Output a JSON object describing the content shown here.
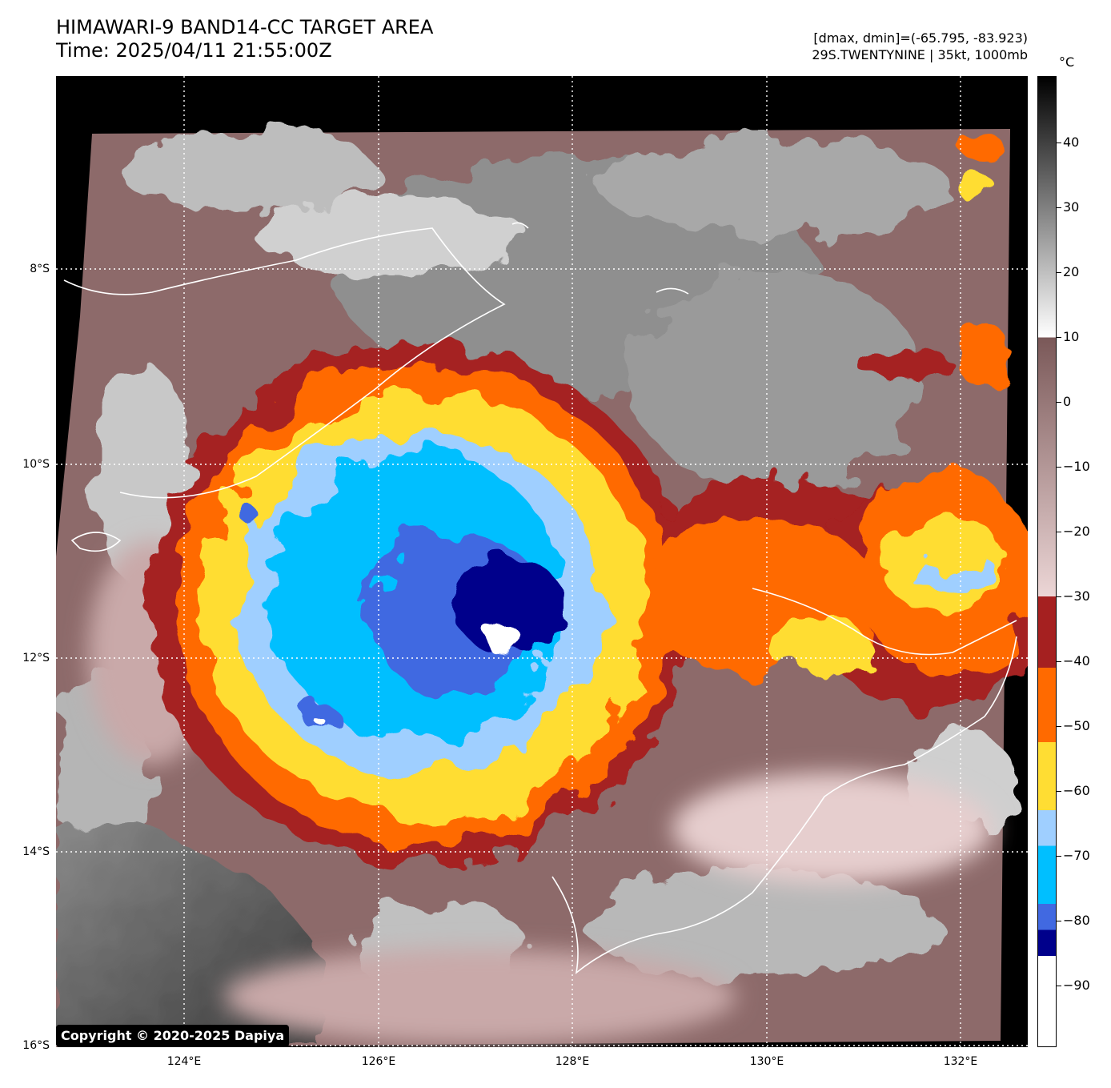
{
  "header": {
    "title_line1": "HIMAWARI-9 BAND14-CC TARGET AREA",
    "title_line2": "Time: 2025/04/11 21:55:00Z",
    "meta_line1": "[dmax, dmin]=(-65.795, -83.923)",
    "meta_line2": "29S.TWENTYNINE | 35kt, 1000mb"
  },
  "map": {
    "latitude_labels": [
      "8°S",
      "10°S",
      "12°S",
      "14°S",
      "16°S"
    ],
    "longitude_labels": [
      "124°E",
      "126°E",
      "128°E",
      "130°E",
      "132°E"
    ],
    "copyright": "Copyright © 2020-2025 Dapiya",
    "storm_id": "29S.TWENTYNINE",
    "intensity": "35kt",
    "pressure": "1000mb",
    "max_temp": -65.795,
    "min_temp": -83.923
  },
  "colorbar": {
    "unit": "°C",
    "tick_labels": [
      "40",
      "30",
      "20",
      "10",
      "0",
      "−10",
      "−20",
      "−30",
      "−40",
      "−50",
      "−60",
      "−70",
      "−80",
      "−90"
    ],
    "colors": {
      "below_minus_80": "#00008b",
      "minus_80_to_70": "#4169e1",
      "minus_70_to_60": "#00bfff",
      "minus_60_to_50": "#9fcfff",
      "minus_50_to_40": "#ffdd33",
      "minus_40_to_30": "#ff6a00",
      "minus_30_to_20": "#a52020",
      "warm_top": "#ecd6d6",
      "warm_bottom": "#7a5858",
      "gray_top": "#ffffff",
      "gray_bottom": "#000000"
    }
  }
}
